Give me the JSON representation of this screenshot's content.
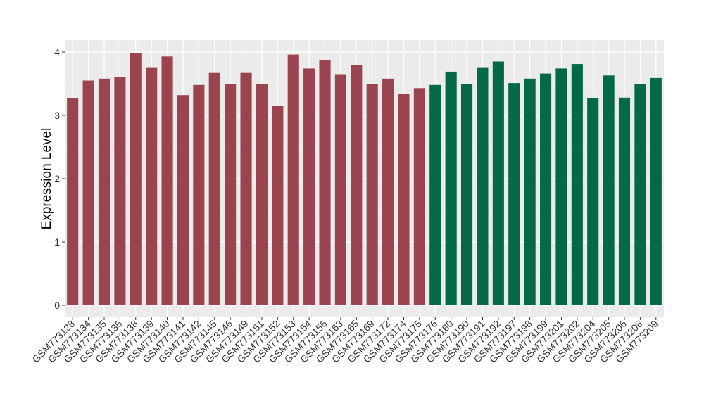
{
  "chart_data": {
    "type": "bar",
    "title": "",
    "xlabel": "",
    "ylabel": "Expression Level",
    "ylim": [
      0,
      4.1
    ],
    "yticks": [
      0,
      1,
      2,
      3,
      4
    ],
    "grid": true,
    "legend": "none",
    "colors": {
      "group1": "#9a4450",
      "group2": "#046a46",
      "panel": "#ebebeb",
      "gridline": "#ffffff"
    },
    "categories": [
      "GSM773128",
      "GSM773134",
      "GSM773135",
      "GSM773136",
      "GSM773138",
      "GSM773139",
      "GSM773140",
      "GSM773141",
      "GSM773142",
      "GSM773145",
      "GSM773146",
      "GSM773149",
      "GSM773151",
      "GSM773152",
      "GSM773153",
      "GSM773154",
      "GSM773156",
      "GSM773163",
      "GSM773165",
      "GSM773169",
      "GSM773172",
      "GSM773174",
      "GSM773175",
      "GSM773176",
      "GSM773180",
      "GSM773190",
      "GSM773191",
      "GSM773192",
      "GSM773197",
      "GSM773198",
      "GSM773199",
      "GSM773201",
      "GSM773202",
      "GSM773204",
      "GSM773205",
      "GSM773206",
      "GSM773208",
      "GSM773209"
    ],
    "values": [
      3.27,
      3.55,
      3.58,
      3.6,
      3.98,
      3.76,
      3.93,
      3.32,
      3.48,
      3.67,
      3.49,
      3.67,
      3.49,
      3.15,
      3.96,
      3.74,
      3.87,
      3.65,
      3.79,
      3.49,
      3.58,
      3.34,
      3.43,
      3.48,
      3.69,
      3.5,
      3.76,
      3.85,
      3.51,
      3.58,
      3.66,
      3.74,
      3.81,
      3.27,
      3.63,
      3.28,
      3.49,
      3.59
    ],
    "groups": [
      1,
      1,
      1,
      1,
      1,
      1,
      1,
      1,
      1,
      1,
      1,
      1,
      1,
      1,
      1,
      1,
      1,
      1,
      1,
      1,
      1,
      1,
      1,
      2,
      2,
      2,
      2,
      2,
      2,
      2,
      2,
      2,
      2,
      2,
      2,
      2,
      2,
      2
    ]
  }
}
